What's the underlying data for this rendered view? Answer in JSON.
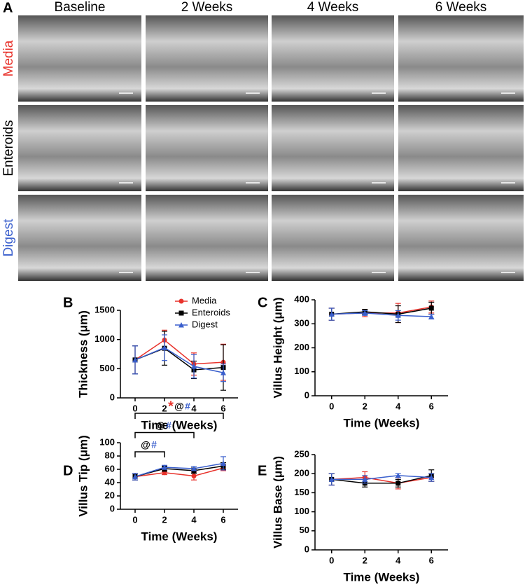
{
  "panel_a": {
    "label": "A",
    "columns": [
      "Baseline",
      "2 Weeks",
      "4 Weeks",
      "6 Weeks"
    ],
    "rows": [
      {
        "text": "Media",
        "color": "#e8322b"
      },
      {
        "text": "Enteroids",
        "color": "#000000"
      },
      {
        "text": "Digest",
        "color": "#3a5fcd"
      }
    ]
  },
  "chart_data": [
    {
      "type": "line",
      "panel": "B",
      "ylabel": "Thickness (μm)",
      "xlabel": "Time (Weeks)",
      "x": [
        0,
        2,
        4,
        6
      ],
      "xlim": [
        -1,
        7
      ],
      "xticks": [
        0,
        2,
        4,
        6
      ],
      "ylim": [
        0,
        1500
      ],
      "yticks": [
        0,
        500,
        1000,
        1500
      ],
      "legend": "top-right",
      "series": [
        {
          "name": "Media",
          "color": "#e8322b",
          "marker": "circle",
          "values": [
            650,
            990,
            580,
            610
          ],
          "errors": [
            240,
            170,
            190,
            310
          ]
        },
        {
          "name": "Enteroids",
          "color": "#000000",
          "marker": "square",
          "values": [
            650,
            850,
            480,
            520
          ],
          "errors": [
            240,
            290,
            150,
            390
          ]
        },
        {
          "name": "Digest",
          "color": "#3a5fcd",
          "marker": "triangle",
          "values": [
            650,
            860,
            540,
            430
          ],
          "errors": [
            240,
            220,
            200,
            150
          ]
        }
      ]
    },
    {
      "type": "line",
      "panel": "C",
      "ylabel": "Villus Height (μm)",
      "xlabel": "Time (Weeks)",
      "x": [
        0,
        2,
        4,
        6
      ],
      "xlim": [
        -1,
        7
      ],
      "xticks": [
        0,
        2,
        4,
        6
      ],
      "ylim": [
        0,
        400
      ],
      "yticks": [
        0,
        100,
        200,
        300,
        400
      ],
      "series": [
        {
          "color": "#e8322b",
          "marker": "circle",
          "values": [
            340,
            345,
            345,
            370
          ],
          "errors": [
            25,
            15,
            40,
            25
          ]
        },
        {
          "color": "#000000",
          "marker": "square",
          "values": [
            340,
            350,
            340,
            365
          ],
          "errors": [
            25,
            10,
            35,
            25
          ]
        },
        {
          "color": "#3a5fcd",
          "marker": "triangle",
          "values": [
            340,
            345,
            335,
            330
          ],
          "errors": [
            25,
            10,
            20,
            10
          ]
        }
      ]
    },
    {
      "type": "line",
      "panel": "D",
      "ylabel": "Villus Tip (μm)",
      "xlabel": "Time (Weeks)",
      "x": [
        0,
        2,
        4,
        6
      ],
      "xlim": [
        -1,
        7
      ],
      "xticks": [
        0,
        2,
        4,
        6
      ],
      "ylim": [
        0,
        100
      ],
      "yticks": [
        0,
        20,
        40,
        60,
        80,
        100
      ],
      "series": [
        {
          "color": "#e8322b",
          "marker": "circle",
          "values": [
            49,
            55,
            50,
            62
          ],
          "errors": [
            5,
            3,
            6,
            4
          ]
        },
        {
          "color": "#000000",
          "marker": "square",
          "values": [
            49,
            61,
            58,
            65
          ],
          "errors": [
            5,
            4,
            4,
            5
          ]
        },
        {
          "color": "#3a5fcd",
          "marker": "triangle",
          "values": [
            49,
            63,
            61,
            69
          ],
          "errors": [
            5,
            3,
            3,
            10
          ]
        }
      ],
      "annotations": [
        {
          "x": [
            0,
            2
          ],
          "symbols": [
            {
              "text": "@",
              "color": "#000000"
            },
            {
              "text": "#",
              "color": "#3a5fcd"
            }
          ]
        },
        {
          "x": [
            0,
            4
          ],
          "symbols": [
            {
              "text": "@",
              "color": "#000000"
            },
            {
              "text": "#",
              "color": "#3a5fcd"
            }
          ]
        },
        {
          "x": [
            0,
            6
          ],
          "symbols": [
            {
              "text": "*",
              "color": "#e8322b"
            },
            {
              "text": "@",
              "color": "#000000"
            },
            {
              "text": "#",
              "color": "#3a5fcd"
            }
          ]
        }
      ]
    },
    {
      "type": "line",
      "panel": "E",
      "ylabel": "Villus Base (μm)",
      "xlabel": "Time (Weeks)",
      "x": [
        0,
        2,
        4,
        6
      ],
      "xlim": [
        -1,
        7
      ],
      "xticks": [
        0,
        2,
        4,
        6
      ],
      "ylim": [
        0,
        250
      ],
      "yticks": [
        0,
        50,
        100,
        150,
        200,
        250
      ],
      "series": [
        {
          "color": "#e8322b",
          "marker": "circle",
          "values": [
            185,
            190,
            175,
            190
          ],
          "errors": [
            15,
            15,
            15,
            10
          ]
        },
        {
          "color": "#000000",
          "marker": "square",
          "values": [
            185,
            175,
            175,
            195
          ],
          "errors": [
            15,
            10,
            10,
            15
          ]
        },
        {
          "color": "#3a5fcd",
          "marker": "triangle",
          "values": [
            185,
            185,
            195,
            190
          ],
          "errors": [
            15,
            10,
            5,
            10
          ]
        }
      ]
    }
  ]
}
